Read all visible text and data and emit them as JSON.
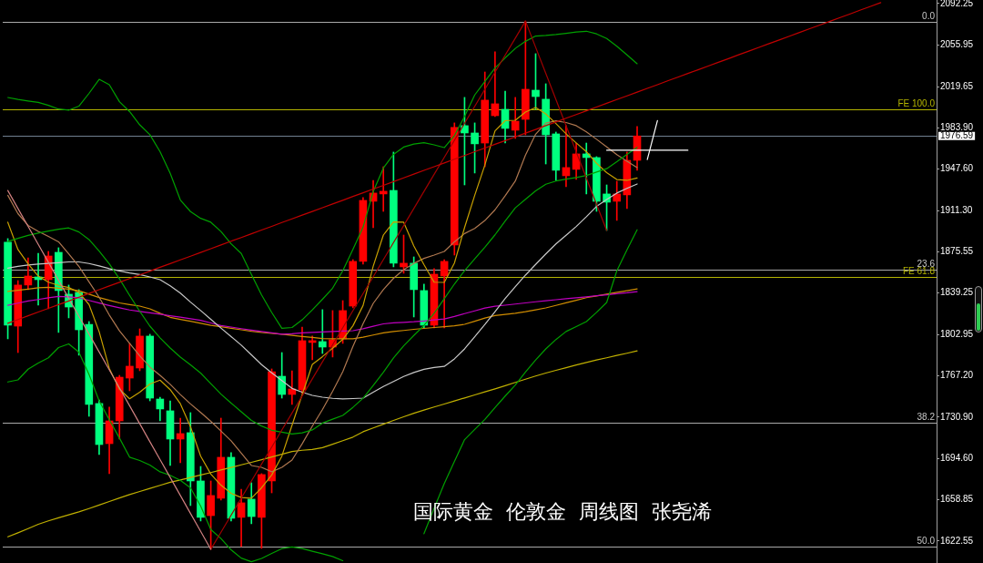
{
  "chart_data": {
    "type": "candlestick",
    "categories": [
      null,
      null,
      null,
      null,
      null,
      null,
      null,
      null,
      null,
      null,
      null,
      null,
      null,
      null,
      null,
      null,
      null,
      null,
      null,
      null,
      null,
      null,
      null,
      null,
      null,
      null,
      null,
      null,
      null,
      null,
      null,
      null,
      null,
      null,
      null,
      null,
      null,
      null,
      null,
      null,
      null,
      null,
      null,
      null,
      null,
      null,
      null,
      null,
      null,
      null,
      null,
      null,
      null,
      null,
      null,
      null,
      null,
      null,
      null,
      null,
      null,
      null,
      null,
      null,
      null,
      null,
      null,
      null,
      null,
      null,
      null,
      null,
      null,
      null,
      null,
      null,
      null,
      null,
      null,
      null,
      null,
      null,
      null,
      null,
      null,
      null,
      null,
      null,
      null,
      null,
      null,
      null
    ],
    "ohlc": [
      [
        1883.7,
        1886.9,
        1799.3,
        1811.2
      ],
      [
        1810.4,
        1850.2,
        1787.3,
        1846.3
      ],
      [
        1846.3,
        1870.1,
        1842.3,
        1854.2
      ],
      [
        1853.4,
        1874.1,
        1828.7,
        1851.0
      ],
      [
        1851.0,
        1875.7,
        1825.6,
        1871.7
      ],
      [
        1874.9,
        1878.9,
        1804.9,
        1841.5
      ],
      [
        1838.3,
        1846.3,
        1817.6,
        1827.1
      ],
      [
        1839.9,
        1842.3,
        1785.0,
        1807.2
      ],
      [
        1812.0,
        1814.4,
        1731.6,
        1742.0
      ],
      [
        1742.8,
        1745.9,
        1698.2,
        1706.9
      ],
      [
        1707.7,
        1739.6,
        1681.5,
        1727.6
      ],
      [
        1727.6,
        1767.4,
        1711.7,
        1765.8
      ],
      [
        1765.0,
        1795.3,
        1753.9,
        1775.4
      ],
      [
        1773.8,
        1808.0,
        1771.4,
        1801.7
      ],
      [
        1801.7,
        1803.3,
        1745.1,
        1747.5
      ],
      [
        1746.7,
        1748.3,
        1727.6,
        1738.0
      ],
      [
        1736.4,
        1745.1,
        1688.6,
        1711.7
      ],
      [
        1711.7,
        1730.0,
        1691.0,
        1716.5
      ],
      [
        1717.3,
        1734.8,
        1653.6,
        1675.1
      ],
      [
        1675.1,
        1687.8,
        1640.1,
        1643.3
      ],
      [
        1644.8,
        1675.1,
        1615.4,
        1662.4
      ],
      [
        1660.0,
        1730.0,
        1658.4,
        1695.8
      ],
      [
        1695.8,
        1699.8,
        1640.1,
        1642.5
      ],
      [
        1643.3,
        1667.9,
        1617.8,
        1656.0
      ],
      [
        1659.2,
        1673.5,
        1637.7,
        1644.0
      ],
      [
        1643.3,
        1681.5,
        1616.2,
        1680.7
      ],
      [
        1675.1,
        1773.0,
        1664.7,
        1770.6
      ],
      [
        1766.6,
        1787.3,
        1747.5,
        1750.7
      ],
      [
        1750.7,
        1771.4,
        1742.0,
        1755.5
      ],
      [
        1754.7,
        1809.6,
        1751.5,
        1797.7
      ],
      [
        1796.1,
        1801.7,
        1781.0,
        1797.7
      ],
      [
        1796.9,
        1824.8,
        1786.5,
        1792.1
      ],
      [
        1792.1,
        1824.0,
        1783.4,
        1798.5
      ],
      [
        1799.3,
        1832.7,
        1795.3,
        1824.0
      ],
      [
        1827.9,
        1868.5,
        1826.4,
        1867.0
      ],
      [
        1867.0,
        1922.7,
        1864.6,
        1920.3
      ],
      [
        1919.5,
        1937.8,
        1896.4,
        1926.7
      ],
      [
        1925.9,
        1949.7,
        1910.7,
        1928.3
      ],
      [
        1929.0,
        1962.5,
        1862.2,
        1865.4
      ],
      [
        1862.2,
        1890.0,
        1856.6,
        1865.4
      ],
      [
        1865.4,
        1870.9,
        1818.4,
        1842.3
      ],
      [
        1841.5,
        1847.1,
        1808.8,
        1811.2
      ],
      [
        1811.2,
        1860.6,
        1808.8,
        1855.8
      ],
      [
        1854.2,
        1868.5,
        1808.8,
        1867.0
      ],
      [
        1881.3,
        1988.0,
        1872.5,
        1984.0
      ],
      [
        1985.6,
        2010.3,
        1933.8,
        1979.2
      ],
      [
        1979.2,
        1988.0,
        1944.2,
        1969.7
      ],
      [
        1970.4,
        2032.5,
        1949.7,
        2007.9
      ],
      [
        1994.3,
        2050.1,
        1993.5,
        2004.7
      ],
      [
        1999.9,
        2015.8,
        1970.4,
        1983.2
      ],
      [
        1981.6,
        2010.3,
        1974.4,
        1989.5
      ],
      [
        1991.1,
        2077.0,
        1977.6,
        2017.4
      ],
      [
        2016.6,
        2048.5,
        1999.9,
        2011.0
      ],
      [
        2008.7,
        2022.2,
        1952.1,
        1977.6
      ],
      [
        1978.4,
        1980.0,
        1937.8,
        1946.6
      ],
      [
        1941.8,
        1985.6,
        1932.2,
        1949.0
      ],
      [
        1947.4,
        1970.4,
        1938.6,
        1960.9
      ],
      [
        1960.9,
        1970.4,
        1925.9,
        1957.7
      ],
      [
        1957.7,
        1958.5,
        1910.7,
        1919.5
      ],
      [
        1925.9,
        1933.8,
        1894.0,
        1918.7
      ],
      [
        1919.5,
        1937.0,
        1902.8,
        1925.9
      ],
      [
        1925.1,
        1962.5,
        1913.1,
        1955.3
      ],
      [
        1955.3,
        1984.8,
        1946.6,
        1976.59
      ],
      null,
      null,
      null,
      null,
      null,
      null,
      null,
      null,
      null,
      null,
      null,
      null,
      null,
      null,
      null,
      null,
      null,
      null,
      null,
      null,
      null,
      null,
      null,
      null,
      null,
      null,
      null,
      null,
      null
    ],
    "colors": [
      "#00ff7f",
      "#ff0000",
      "#ff0000",
      "#00ff7f",
      "#ff0000",
      "#00ff7f",
      "#00ff7f",
      "#00ff7f",
      "#00ff7f",
      "#00ff7f",
      "#ff0000",
      "#ff0000",
      "#ff0000",
      "#ff0000",
      "#00ff7f",
      "#00ff7f",
      "#00ff7f",
      "#ff0000",
      "#00ff7f",
      "#00ff7f",
      "#ff0000",
      "#ff0000",
      "#00ff7f",
      "#ff0000",
      "#00ff7f",
      "#ff0000",
      "#ff0000",
      "#00ff7f",
      "#ff0000",
      "#ff0000",
      "#ff0000",
      "#00ff7f",
      "#ff0000",
      "#ff0000",
      "#ff0000",
      "#ff0000",
      "#ff0000",
      "#ff0000",
      "#00ff7f",
      "#ff0000",
      "#00ff7f",
      "#00ff7f",
      "#ff0000",
      "#ff0000",
      "#ff0000",
      "#00ff7f",
      "#00ff7f",
      "#ff0000",
      "#ff0000",
      "#00ff7f",
      "#ff0000",
      "#ff0000",
      "#00ff7f",
      "#00ff7f",
      "#00ff7f",
      "#ff0000",
      "#ff0000",
      "#00ff7f",
      "#00ff7f",
      "#00ff7f",
      "#ff0000",
      "#ff0000",
      "#ff0000",
      null,
      null,
      null,
      null,
      null,
      null,
      null,
      null,
      null,
      null,
      null,
      null,
      null,
      null,
      null,
      null,
      null,
      null,
      null,
      null,
      null,
      null,
      null,
      null,
      null,
      null,
      null,
      null,
      null
    ],
    "ylim": [
      1603.4,
      2095.4
    ],
    "yticks": [
      2092.25,
      2055.95,
      2019.65,
      {
        "value": 1983.9,
        "label": "1983.90"
      },
      1976.59,
      {
        "value": 1947.6,
        "label": "1947.60"
      },
      {
        "value": 1911.3,
        "label": "1911.30"
      },
      1875.55,
      1839.25,
      1802.95,
      {
        "value": 1767.2,
        "label": "1767.20"
      },
      {
        "value": 1730.9,
        "label": "1730.90"
      },
      {
        "value": 1694.6,
        "label": "1694.60"
      },
      1658.85,
      1622.55
    ],
    "tick_labels": "y",
    "series": [
      {
        "type": "line",
        "color": "#c00000",
        "values": [
          1812.9,
          1816.2,
          1819.4,
          1822.7,
          1825.9,
          1829.2,
          1832.4,
          1835.7,
          1839.0,
          1842.2,
          1845.5,
          1848.7,
          1852.0,
          1855.2,
          1858.5,
          1861.8,
          1865.0,
          1868.3,
          1871.5,
          1874.8,
          1878.1,
          1881.3,
          1884.6,
          1887.8,
          1891.1,
          1894.4,
          1897.6,
          1900.9,
          1904.1,
          1907.4,
          1910.6,
          1913.9,
          1917.2,
          1920.4,
          1923.7,
          1926.9,
          1930.2,
          1933.4,
          1936.7,
          1940.0,
          1943.2,
          1946.5,
          1949.7,
          1953.0,
          1956.3,
          1959.5,
          1962.8,
          1966.0,
          1969.3,
          1972.5,
          1975.8,
          1979.1,
          1982.3,
          1985.6,
          1988.8,
          1992.1,
          1995.3,
          1998.6,
          2001.9,
          2005.1,
          2008.4,
          2011.6,
          2014.9,
          2018.2,
          2021.4,
          2024.7,
          2027.9,
          2031.2,
          2034.4,
          2037.7,
          2041.0,
          2044.2,
          2047.5,
          2050.7,
          2054.0,
          2057.3,
          2060.5,
          2063.8,
          2067.0,
          2070.3,
          2073.5,
          2076.8,
          2080.1,
          2083.3,
          2086.6,
          2089.8,
          2093.1,
          null,
          null,
          null,
          null,
          null
        ]
      },
      {
        "type": "line",
        "color": "#d08080",
        "values": [
          1928.9,
          1913.2,
          1897.6,
          1881.9,
          1866.2,
          1850.5,
          1834.8,
          1819.2,
          1803.5,
          1787.8,
          1772.2,
          1756.5,
          1740.8,
          1725.1,
          1709.4,
          1693.8,
          1678.1,
          1662.4,
          1646.7,
          1631.1,
          1615.4,
          null,
          null,
          null,
          null,
          null,
          null,
          null,
          null,
          null,
          null,
          null,
          null,
          null,
          null,
          null,
          null,
          null,
          null,
          null,
          null,
          null,
          null,
          null,
          null,
          null,
          null,
          null,
          null,
          null,
          null,
          null,
          null,
          null,
          null,
          null,
          null,
          null,
          null,
          null,
          null,
          null,
          null,
          null,
          null,
          null,
          null,
          null,
          null,
          null,
          null,
          null,
          null,
          null,
          null,
          null,
          null,
          null,
          null,
          null,
          null,
          null,
          null,
          null,
          null,
          null,
          null,
          null,
          null,
          null,
          null,
          null
        ]
      },
      {
        "type": "line",
        "color": "#a00000",
        "values": [
          null,
          null,
          null,
          null,
          null,
          null,
          null,
          null,
          null,
          null,
          null,
          null,
          null,
          null,
          null,
          null,
          null,
          null,
          null,
          null,
          1615.4,
          1630.3,
          1645.2,
          1660.1,
          1675.0,
          1689.9,
          1704.7,
          1719.6,
          1734.5,
          1749.4,
          1764.3,
          1779.2,
          1794.1,
          1809.0,
          1823.9,
          1838.8,
          1853.6,
          1868.5,
          1883.4,
          1898.3,
          1913.2,
          1928.1,
          1943.0,
          1957.9,
          1972.8,
          1987.7,
          2002.5,
          2017.4,
          2032.3,
          2047.2,
          2062.1,
          2077.0,
          2054.1,
          2031.3,
          2008.4,
          1985.5,
          1962.6,
          1939.8,
          1916.9,
          1894.0,
          null,
          null,
          null,
          null,
          null,
          null,
          null,
          null,
          null,
          null,
          null,
          null,
          null,
          null,
          null,
          null,
          null,
          null,
          null,
          null,
          null,
          null,
          null,
          null,
          null,
          null,
          null,
          null,
          null,
          null,
          null,
          null
        ]
      },
      {
        "type": "line",
        "color": "#ffffff",
        "values": [
          null,
          null,
          null,
          null,
          null,
          null,
          null,
          null,
          null,
          null,
          null,
          null,
          null,
          null,
          null,
          null,
          null,
          null,
          null,
          null,
          null,
          null,
          null,
          null,
          null,
          null,
          null,
          null,
          null,
          null,
          null,
          null,
          null,
          null,
          null,
          null,
          null,
          null,
          null,
          null,
          null,
          null,
          null,
          null,
          null,
          null,
          null,
          null,
          null,
          null,
          null,
          null,
          null,
          null,
          null,
          null,
          null,
          null,
          null,
          1964.1,
          1964.1,
          1964.1,
          1964.1,
          1964.1,
          1964.1,
          1964.1,
          1964.1,
          1964.1,
          null,
          null,
          null,
          null,
          null,
          null,
          null,
          null,
          null,
          null,
          null,
          null,
          null,
          null,
          null,
          null,
          null,
          null,
          null,
          null,
          null,
          null,
          null,
          null
        ]
      },
      {
        "type": "line",
        "color": "#ffffff",
        "values": [
          null,
          null,
          null,
          null,
          null,
          null,
          null,
          null,
          null,
          null,
          null,
          null,
          null,
          null,
          null,
          null,
          null,
          null,
          null,
          null,
          null,
          null,
          null,
          null,
          null,
          null,
          null,
          null,
          null,
          null,
          null,
          null,
          null,
          null,
          null,
          null,
          null,
          null,
          null,
          null,
          null,
          null,
          null,
          null,
          null,
          null,
          null,
          null,
          null,
          null,
          null,
          null,
          null,
          null,
          null,
          null,
          null,
          null,
          null,
          null,
          null,
          null,
          null,
          1956,
          1990,
          null,
          null,
          null,
          null,
          null,
          null,
          null,
          null,
          null,
          null,
          null,
          null,
          null,
          null,
          null,
          null,
          null,
          null,
          null,
          null,
          null,
          null,
          null,
          null,
          null,
          null,
          null
        ]
      },
      {
        "type": "line",
        "color": "#00a000",
        "values": [
          2010.2,
          2008.5,
          2007.2,
          2005.9,
          2003.3,
          2000.1,
          1999.1,
          2002.6,
          2013.8,
          2026.1,
          2021.4,
          2006.5,
          1997.9,
          1986.3,
          1977.7,
          1962.8,
          1943.9,
          1920.6,
          1910.5,
          1904.6,
          1901.2,
          1893.1,
          1882.3,
          1873.9,
          1855.6,
          1837.6,
          1822.3,
          1808.5,
          1809.2,
          1815.9,
          1824.6,
          1833.9,
          1843.6,
          1858.7,
          1877.4,
          1896.9,
          1928.0,
          1948.6,
          1960.5,
          1966.9,
          1969.5,
          1970.7,
          1968.8,
          1966.4,
          1976.9,
          1993.7,
          2012.4,
          2024.2,
          2036.0,
          2044.8,
          2053.1,
          2059.3,
          2063.9,
          2064.5,
          2065.3,
          2066.3,
          2067.4,
          2068.1,
          2065.8,
          2061.7,
          2055.0,
          2047.4,
          2039.7,
          null,
          null,
          null,
          null,
          null,
          null,
          null,
          null,
          null,
          null,
          null,
          null,
          null,
          null,
          null,
          null,
          null,
          null,
          null,
          null,
          null,
          null,
          null,
          null,
          null,
          null,
          null,
          null,
          null
        ]
      },
      {
        "type": "line",
        "color": "#00a000",
        "values": [
          1884.3,
          1887.1,
          1889.7,
          1891.7,
          1893.5,
          1895.1,
          1896.2,
          1892.7,
          1886.1,
          1876.0,
          1864.8,
          1851.7,
          1837.3,
          1823.3,
          1810.4,
          1800.2,
          1791.3,
          1783.3,
          1776.6,
          1769.4,
          1760.2,
          1751.0,
          1743.1,
          1735.6,
          1728.0,
          1723.1,
          1719.4,
          1717.8,
          1716.2,
          1717.2,
          1719.7,
          1725.7,
          1729.1,
          1732.4,
          1739.4,
          1747.4,
          1758.6,
          1770.1,
          1782.6,
          1793.2,
          1802.2,
          1811.0,
          1821.7,
          1834.4,
          1847.2,
          1858.9,
          1869.2,
          1879.3,
          1890.2,
          1902.2,
          1913.8,
          1921.2,
          1928.6,
          1934.4,
          1937.2,
          1938.8,
          1940.2,
          1942.1,
          1945.0,
          1948.0,
          1954.1,
          1960.4,
          1966.6,
          null,
          null,
          null,
          null,
          null,
          null,
          null,
          null,
          null,
          null,
          null,
          null,
          null,
          null,
          null,
          null,
          null,
          null,
          null,
          null,
          null,
          null,
          null,
          null,
          null,
          null,
          null,
          null,
          null
        ]
      },
      {
        "type": "line",
        "color": "#00a000",
        "values": [
          1761.6,
          1763.4,
          1772.8,
          1778.2,
          1782.7,
          1791.7,
          1794.9,
          1787.7,
          1768.2,
          1745.1,
          1728.6,
          1712.6,
          1695.9,
          1693.0,
          1689.0,
          1683.1,
          1680.0,
          1675.7,
          1669.1,
          1653.1,
          1632.7,
          1624.8,
          1614.9,
          1607.7,
          1604.5,
          1607.4,
          1611.7,
          1616.0,
          1617.4,
          1616.1,
          1613.7,
          1611.4,
          1609.1,
          1605.4,
          null,
          null,
          null,
          null,
          null,
          null,
          null,
          1629.0,
          1651.2,
          1672.9,
          1692.2,
          1711.2,
          1720.1,
          1728.9,
          1739.3,
          1749.3,
          1759.0,
          1770.2,
          1780.8,
          1790.5,
          1798.7,
          1805.7,
          1810.0,
          1814.4,
          1822.4,
          1831.1,
          1858.8,
          1877.1,
          1894.6,
          null,
          null,
          null,
          null,
          null,
          null,
          null,
          null,
          null,
          null,
          null,
          null,
          null,
          null,
          null,
          null,
          null,
          null,
          null,
          null,
          null,
          null,
          null,
          null,
          null,
          null,
          null,
          null,
          null
        ]
      },
      {
        "type": "line",
        "color": "#c8a000",
        "values": [
          1901.2,
          1877.3,
          1864.8,
          1854.1,
          1848.8,
          1846.0,
          1844.1,
          1839.9,
          1829.3,
          1805.5,
          1773.4,
          1755.3,
          1746.9,
          1752.6,
          1759.8,
          1763.2,
          1754.9,
          1742.6,
          1722.5,
          1696.8,
          1681.1,
          1671.4,
          1664.3,
          1660.6,
          1660.0,
          1669.1,
          1680.3,
          1696.8,
          1723.8,
          1750.5,
          1777.0,
          1783.8,
          1791.1,
          1798.8,
          1810.7,
          1828.4,
          1862.8,
          1890.0,
          1901.4,
          1901.2,
          1880.5,
          1864.1,
          1848.8,
          1848.6,
          1865.5,
          1896.6,
          1924.7,
          1951.2,
          1981.0,
          1989.9,
          1990.3,
          1997.5,
          2001.5,
          1995.9,
          1987.4,
          1978.5,
          1970.5,
          1962.9,
          1952.7,
          1944.5,
          1938.5,
          1937.8,
          1939.9,
          null,
          null,
          null,
          null,
          null,
          null,
          null,
          null,
          null,
          null,
          null,
          null,
          null,
          null,
          null,
          null,
          null,
          null,
          null,
          null,
          null,
          null,
          null,
          null,
          null,
          null,
          null,
          null,
          null
        ]
      },
      {
        "type": "line",
        "color": "#b07850",
        "values": [
          1924.7,
          1908.7,
          1898.4,
          1893.2,
          1888.8,
          1884.1,
          1873.6,
          1862.7,
          1849.1,
          1835.7,
          1820.1,
          1806.3,
          1795.4,
          1784.4,
          1774.6,
          1767.4,
          1759.5,
          1750.6,
          1742.4,
          1735.0,
          1727.2,
          1718.7,
          1710.2,
          1699.5,
          1688.6,
          1687.0,
          1683.1,
          1687.0,
          1693.4,
          1707.6,
          1723.0,
          1737.5,
          1753.5,
          1770.6,
          1792.7,
          1812.5,
          1830.3,
          1842.3,
          1852.2,
          1859.7,
          1865.2,
          1869.6,
          1872.5,
          1875.7,
          1884.1,
          1891.3,
          1895.8,
          1902.7,
          1912.1,
          1924.3,
          1937.2,
          1959.8,
          1978.1,
          1987.8,
          1989.8,
          1988.3,
          1985.6,
          1980.1,
          1973.7,
          1967.1,
          1960.2,
          1954.5,
          1949.0,
          null,
          null,
          null,
          null,
          null,
          null,
          null,
          null,
          null,
          null,
          null,
          null,
          null,
          null,
          null,
          null,
          null,
          null,
          null,
          null,
          null,
          null,
          null,
          null,
          null,
          null,
          null,
          null,
          null
        ]
      },
      {
        "type": "line",
        "color": "#c8c8c8",
        "values": [
          1861.0,
          1862.6,
          1863.9,
          1864.6,
          1865.2,
          1865.8,
          1866.5,
          1866.5,
          1865.1,
          1863.0,
          1860.6,
          1858.7,
          1856.9,
          1855.5,
          1853.4,
          1851.0,
          1845.7,
          1839.3,
          1831.4,
          1824.0,
          1816.3,
          1808.7,
          1801.3,
          1793.8,
          1785.3,
          1776.8,
          1769.6,
          1762.9,
          1756.0,
          1752.7,
          1749.9,
          1748.3,
          1747.3,
          1746.8,
          1747.1,
          1747.5,
          1752.6,
          1757.6,
          1762.0,
          1766.4,
          1769.9,
          1772.7,
          1774.2,
          1775.2,
          1781.8,
          1790.5,
          1801.2,
          1811.9,
          1823.1,
          1834.5,
          1844.9,
          1855.0,
          1864.3,
          1873.5,
          1882.2,
          1889.8,
          1897.5,
          1906.0,
          1915.0,
          1921.1,
          1926.7,
          1930.8,
          1934.6,
          null,
          null,
          null,
          null,
          null,
          null,
          null,
          null,
          null,
          null,
          null,
          null,
          null,
          null,
          null,
          null,
          null,
          null,
          null,
          null,
          null,
          null,
          null,
          null,
          null,
          null,
          null,
          null,
          null
        ]
      },
      {
        "type": "line",
        "color": "#c000c0",
        "values": [
          1828.6,
          1830.5,
          1832.4,
          1833.7,
          1835.1,
          1836.4,
          1836.0,
          1835.1,
          1832.9,
          1830.6,
          1828.4,
          1826.4,
          1824.5,
          1823.2,
          1822.0,
          1820.8,
          1819.5,
          1818.2,
          1816.9,
          1815.5,
          1813.2,
          1810.9,
          1809.6,
          1808.2,
          1806.9,
          1805.7,
          1804.5,
          1803.3,
          1803.8,
          1804.5,
          1804.9,
          1805.3,
          1805.7,
          1806.1,
          1806.4,
          1808.1,
          1810.3,
          1812.4,
          1813.2,
          1813.7,
          1814.2,
          1814.9,
          1815.8,
          1816.6,
          1818.8,
          1821.3,
          1823.7,
          1826.2,
          1827.8,
          1828.7,
          1829.7,
          1830.7,
          1831.7,
          1832.6,
          1833.5,
          1834.3,
          1835.2,
          1836.0,
          1836.9,
          1837.8,
          1838.8,
          1839.6,
          1840.6,
          null,
          null,
          null,
          null,
          null,
          null,
          null,
          null,
          null,
          null,
          null,
          null,
          null,
          null,
          null,
          null,
          null,
          null,
          null,
          null,
          null,
          null,
          null,
          null,
          null,
          null,
          null,
          null,
          null
        ]
      },
      {
        "type": "line",
        "color": "#d08c00",
        "values": [
          1840.7,
          1841.8,
          1842.8,
          1843.9,
          1844.4,
          1843.6,
          1842.8,
          1841.3,
          1838.4,
          1835.4,
          1833.0,
          1830.7,
          1829.2,
          1827.9,
          1825.5,
          1821.6,
          1818.1,
          1816.3,
          1814.6,
          1812.9,
          1811.1,
          1809.9,
          1808.5,
          1807.2,
          1805.9,
          1804.9,
          1804.1,
          1803.3,
          1802.4,
          1801.4,
          1800.5,
          1799.5,
          1799.3,
          1799.3,
          1799.3,
          1800.8,
          1802.6,
          1804.5,
          1805.7,
          1806.6,
          1807.6,
          1808.4,
          1809.2,
          1809.9,
          1810.7,
          1812.0,
          1814.7,
          1817.4,
          1819.6,
          1820.6,
          1821.7,
          1823.0,
          1824.6,
          1826.3,
          1828.5,
          1830.8,
          1833.0,
          1835.3,
          1836.8,
          1838.4,
          1839.9,
          1841.4,
          1842.9,
          null,
          null,
          null,
          null,
          null,
          null,
          null,
          null,
          null,
          null,
          null,
          null,
          null,
          null,
          null,
          null,
          null,
          null,
          null,
          null,
          null,
          null,
          null,
          null,
          null,
          null,
          null,
          null,
          null
        ]
      },
      {
        "type": "line",
        "color": "#c0b000",
        "values": [
          1626.3,
          1629.8,
          1633.5,
          1637.2,
          1640.2,
          1642.9,
          1645.5,
          1648.1,
          1651.0,
          1654.0,
          1657.1,
          1660.2,
          1663.2,
          1665.9,
          1668.6,
          1671.3,
          1673.9,
          1676.0,
          1678.1,
          1680.3,
          1682.4,
          1684.7,
          1686.9,
          1689.2,
          1691.4,
          1693.7,
          1696.1,
          1698.4,
          1700.8,
          1701.9,
          1702.6,
          1704.2,
          1707.2,
          1710.3,
          1713.4,
          1718.1,
          1721.4,
          1724.7,
          1728.0,
          1731.2,
          1734.3,
          1737.0,
          1739.7,
          1742.3,
          1745.0,
          1747.6,
          1750.3,
          1753.0,
          1755.6,
          1758.4,
          1761.2,
          1764.0,
          1766.8,
          1769.4,
          1771.8,
          1774.1,
          1776.5,
          1778.7,
          1780.8,
          1782.7,
          1784.8,
          1786.7,
          1788.8,
          null,
          null,
          null,
          null,
          null,
          null,
          null,
          null,
          null,
          null,
          null,
          null,
          null,
          null,
          null,
          null,
          null,
          null,
          null,
          null,
          null,
          null,
          null,
          null,
          null,
          null,
          null,
          null,
          null
        ]
      }
    ],
    "ref_lines": [
      {
        "axis": "y",
        "value": 2076.3,
        "color": "#a9a9a9"
      },
      {
        "axis": "y",
        "value": 2000.0,
        "label": "FE 100.0",
        "color": "#b4b400"
      },
      {
        "axis": "y",
        "value": 1976.59,
        "color": "#708090"
      },
      {
        "axis": "y",
        "value": 1859.8,
        "color": "#a9a9a9"
      },
      {
        "axis": "y",
        "value": 1853.4,
        "label": "FE 61.8",
        "color": "#b4b400"
      },
      {
        "axis": "y",
        "value": 1726.0,
        "color": "#a9a9a9"
      },
      {
        "axis": "y",
        "value": 1617.8,
        "color": "#a9a9a9"
      }
    ],
    "annotations": [
      "国际黄金  伦敦金  周线图  张尧浠",
      {
        "text": "0.0",
        "y": 2076.3
      },
      {
        "text": "23.6",
        "y": 1859.8
      },
      {
        "text": "38.2",
        "y": 1726.0
      },
      {
        "text": "50.0",
        "y": 1617.8
      }
    ]
  }
}
